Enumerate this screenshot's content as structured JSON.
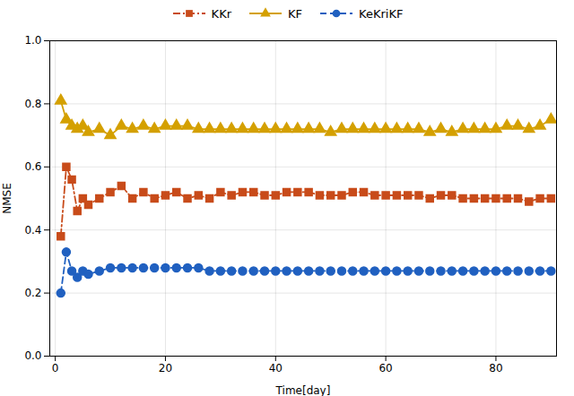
{
  "chart_data": {
    "type": "line",
    "xlabel": "Time[day]",
    "ylabel": "NMSE",
    "xlim": [
      -1,
      91
    ],
    "ylim": [
      0,
      1.0
    ],
    "xticks": [
      0,
      20,
      40,
      60,
      80
    ],
    "yticks": [
      {
        "value": 0,
        "label": "0.0"
      },
      0.2,
      0.4,
      0.6,
      0.8,
      {
        "value": 1.0,
        "label": "1.0"
      }
    ],
    "grid": true,
    "legend": "top",
    "x": [
      1,
      2,
      3,
      4,
      5,
      6,
      8,
      10,
      12,
      14,
      16,
      18,
      20,
      22,
      24,
      26,
      28,
      30,
      32,
      34,
      36,
      38,
      40,
      42,
      44,
      46,
      48,
      50,
      52,
      54,
      56,
      58,
      60,
      62,
      64,
      66,
      68,
      70,
      72,
      74,
      76,
      78,
      80,
      82,
      84,
      86,
      88,
      90
    ],
    "series": [
      {
        "name": "KKr",
        "color": "#C84B1A",
        "marker": "square",
        "line_style": "dashdot",
        "values": [
          0.38,
          0.6,
          0.56,
          0.46,
          0.5,
          0.48,
          0.5,
          0.52,
          0.54,
          0.5,
          0.52,
          0.5,
          0.51,
          0.52,
          0.5,
          0.51,
          0.5,
          0.52,
          0.51,
          0.52,
          0.52,
          0.51,
          0.51,
          0.52,
          0.52,
          0.52,
          0.51,
          0.51,
          0.51,
          0.52,
          0.52,
          0.51,
          0.51,
          0.51,
          0.51,
          0.51,
          0.5,
          0.51,
          0.51,
          0.5,
          0.5,
          0.5,
          0.5,
          0.5,
          0.5,
          0.49,
          0.5,
          0.5
        ]
      },
      {
        "name": "KF",
        "color": "#D4A000",
        "marker": "triangle",
        "line_style": "solid",
        "values": [
          0.81,
          0.75,
          0.73,
          0.72,
          0.73,
          0.71,
          0.72,
          0.7,
          0.73,
          0.72,
          0.73,
          0.72,
          0.73,
          0.73,
          0.73,
          0.72,
          0.72,
          0.72,
          0.72,
          0.72,
          0.72,
          0.72,
          0.72,
          0.72,
          0.72,
          0.72,
          0.72,
          0.71,
          0.72,
          0.72,
          0.72,
          0.72,
          0.72,
          0.72,
          0.72,
          0.72,
          0.71,
          0.72,
          0.71,
          0.72,
          0.72,
          0.72,
          0.72,
          0.73,
          0.73,
          0.72,
          0.73,
          0.75
        ]
      },
      {
        "name": "KeKriKF",
        "color": "#2060C0",
        "marker": "circle",
        "line_style": "dashed",
        "values": [
          0.2,
          0.33,
          0.27,
          0.25,
          0.27,
          0.26,
          0.27,
          0.28,
          0.28,
          0.28,
          0.28,
          0.28,
          0.28,
          0.28,
          0.28,
          0.28,
          0.27,
          0.27,
          0.27,
          0.27,
          0.27,
          0.27,
          0.27,
          0.27,
          0.27,
          0.27,
          0.27,
          0.27,
          0.27,
          0.27,
          0.27,
          0.27,
          0.27,
          0.27,
          0.27,
          0.27,
          0.27,
          0.27,
          0.27,
          0.27,
          0.27,
          0.27,
          0.27,
          0.27,
          0.27,
          0.27,
          0.27,
          0.27
        ]
      }
    ]
  }
}
